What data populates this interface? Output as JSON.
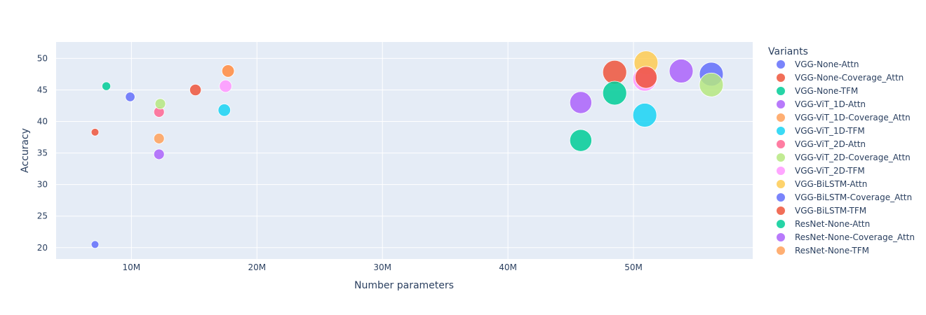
{
  "chart_data": {
    "type": "scatter",
    "title": "",
    "xlabel": "Number parameters",
    "ylabel": "Accuracy",
    "xlim": [
      4000000,
      59500000
    ],
    "ylim": [
      18.2,
      52.6
    ],
    "xticks": [
      {
        "value": 10000000,
        "label": "10M"
      },
      {
        "value": 20000000,
        "label": "20M"
      },
      {
        "value": 30000000,
        "label": "30M"
      },
      {
        "value": 40000000,
        "label": "40M"
      },
      {
        "value": 50000000,
        "label": "50M"
      }
    ],
    "yticks": [
      20,
      25,
      30,
      35,
      40,
      45,
      50
    ],
    "grid": true,
    "legend": {
      "title": "Variants",
      "placement": "right"
    },
    "series": [
      {
        "name": "VGG-None-Attn",
        "color": "#636efa",
        "points": [
          {
            "x": 7100000,
            "y": 20.5,
            "size": 8
          },
          {
            "x": 9900000,
            "y": 43.9,
            "size": 10
          }
        ]
      },
      {
        "name": "VGG-None-Coverage_Attn",
        "color": "#EF553B",
        "points": [
          {
            "x": 7100000,
            "y": 38.3,
            "size": 8
          },
          {
            "x": 15100000,
            "y": 45.0,
            "size": 12
          }
        ]
      },
      {
        "name": "VGG-None-TFM",
        "color": "#00cc96",
        "points": [
          {
            "x": 8000000,
            "y": 45.6,
            "size": 9
          }
        ]
      },
      {
        "name": "VGG-ViT_1D-Attn",
        "color": "#ab63fa",
        "points": [
          {
            "x": 12200000,
            "y": 34.8,
            "size": 11
          }
        ]
      },
      {
        "name": "VGG-ViT_1D-Coverage_Attn",
        "color": "#FFA15A",
        "points": [
          {
            "x": 12200000,
            "y": 37.3,
            "size": 11
          }
        ]
      },
      {
        "name": "VGG-ViT_1D-TFM",
        "color": "#19d3f3",
        "points": [
          {
            "x": 17400000,
            "y": 41.8,
            "size": 13
          }
        ]
      },
      {
        "name": "VGG-ViT_2D-Attn",
        "color": "#FF6692",
        "points": [
          {
            "x": 12200000,
            "y": 41.5,
            "size": 11
          }
        ]
      },
      {
        "name": "VGG-ViT_2D-Coverage_Attn",
        "color": "#B6E880",
        "points": [
          {
            "x": 12300000,
            "y": 42.8,
            "size": 11
          }
        ]
      },
      {
        "name": "VGG-ViT_2D-TFM",
        "color": "#FF97FF",
        "points": [
          {
            "x": 17500000,
            "y": 45.6,
            "size": 13
          }
        ]
      },
      {
        "name": "VGG-BiLSTM-Attn",
        "color": "#FECB52",
        "points": [
          {
            "x": 51000000,
            "y": 49.3,
            "size": 25
          }
        ]
      },
      {
        "name": "VGG-BiLSTM-Coverage_Attn",
        "color": "#636efa",
        "points": [
          {
            "x": 56200000,
            "y": 47.5,
            "size": 25
          }
        ]
      },
      {
        "name": "VGG-BiLSTM-TFM",
        "color": "#EF553B",
        "points": [
          {
            "x": 48500000,
            "y": 47.8,
            "size": 25
          },
          {
            "x": 51000000,
            "y": 47.0,
            "size": 23
          },
          {
            "x": 17700000,
            "y": 48.0,
            "size": 13
          }
        ]
      },
      {
        "name": "ResNet-None-Attn",
        "color": "#00cc96",
        "points": [
          {
            "x": 45800000,
            "y": 37.0,
            "size": 23
          },
          {
            "x": 48500000,
            "y": 44.5,
            "size": 25
          }
        ]
      },
      {
        "name": "ResNet-None-Coverage_Attn",
        "color": "#ab63fa",
        "points": [
          {
            "x": 45800000,
            "y": 43.0,
            "size": 23
          },
          {
            "x": 53800000,
            "y": 48.0,
            "size": 25
          }
        ]
      },
      {
        "name": "ResNet-None-TFM",
        "color": "#FFA15A",
        "points": [
          {
            "x": 17700000,
            "y": 48.0,
            "size": 13
          }
        ]
      },
      {
        "name": "VGG-ViT_1D-TFM",
        "color": "#19d3f3",
        "legend": false,
        "points": [
          {
            "x": 50900000,
            "y": 41.0,
            "size": 25
          }
        ]
      },
      {
        "name": "VGG-ViT_2D-TFM",
        "color": "#FF97FF",
        "legend": false,
        "points": [
          {
            "x": 50900000,
            "y": 46.7,
            "size": 25
          }
        ]
      },
      {
        "name": "VGG-ViT_2D-Coverage_Attn",
        "color": "#B6E880",
        "legend": false,
        "points": [
          {
            "x": 56200000,
            "y": 45.8,
            "size": 25
          }
        ]
      }
    ]
  }
}
